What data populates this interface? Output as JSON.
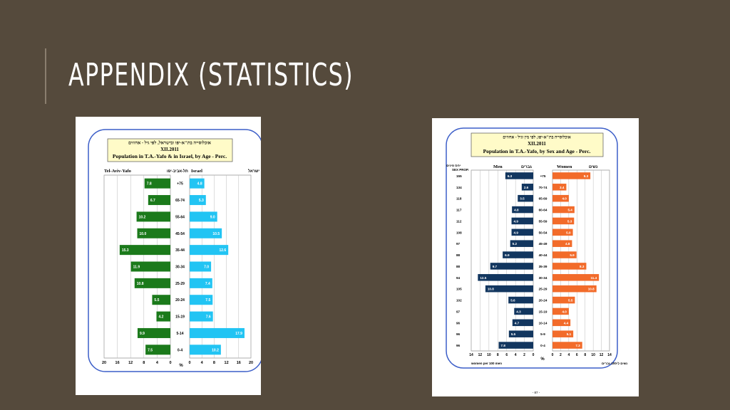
{
  "slide": {
    "title": "APPENDIX (STATISTICS)"
  },
  "colors": {
    "background": "#554a3c",
    "tel_aviv": "#1b7a1b",
    "israel": "#22c4f3",
    "men": "#12365f",
    "women": "#f26b2a",
    "frame": "#3c5ec8",
    "header_fill": "#fffbc8"
  },
  "chart_data": [
    {
      "type": "bar",
      "title_he": "אוכלוסייה בת\"א-יפו ובישראל, לפי גיל - אחוזים",
      "title_date": "XII.2011",
      "title": "Population in T.A.-Yafo & in Israel, by Age - Perc.",
      "left_label": "Tel-Aviv-Yafo",
      "left_label_he": "תל-אביב-יפו",
      "right_label": "Israel",
      "right_label_he": "ישראל",
      "unit": "%",
      "categories": [
        "+75",
        "65-74",
        "55-64",
        "45-54",
        "35-44",
        "30-34",
        "25-29",
        "20-24",
        "15-19",
        "5-14",
        "0-4"
      ],
      "series": [
        {
          "name": "Tel-Aviv-Yafo",
          "values": [
            7.8,
            6.7,
            10.2,
            10.0,
            15.3,
            11.9,
            10.8,
            5.5,
            4.2,
            9.9,
            7.5
          ]
        },
        {
          "name": "Israel",
          "values": [
            4.8,
            5.3,
            9.0,
            10.5,
            12.6,
            7.0,
            7.4,
            7.5,
            7.6,
            17.9,
            10.2
          ]
        }
      ],
      "xlim": [
        0,
        20
      ],
      "ticks_left": [
        "20",
        "16",
        "12",
        "8",
        "4",
        "0"
      ],
      "ticks_right": [
        "0",
        "4",
        "8",
        "12",
        "16",
        "20"
      ],
      "grid": true
    },
    {
      "type": "bar",
      "title_he": "אוכלוסייה בת\"א-יפו, לפי מין וגיל - אחוזים",
      "title_date": "XII.2011",
      "title": "Population in T.A.-Yafo, by Sex and Age - Perc.",
      "men_label": "Men",
      "men_label_he": "גברים",
      "women_label": "Women",
      "women_label_he": "נשים",
      "sexprop_label_he": "יחס מינים",
      "sexprop_label": "SEX PROP.",
      "unit": "%",
      "categories": [
        "+75",
        "70-74",
        "65-69",
        "60-64",
        "55-59",
        "50-54",
        "45-49",
        "40-44",
        "35-39",
        "30-34",
        "25-29",
        "20-24",
        "15-19",
        "10-14",
        "5-9",
        "0-4"
      ],
      "sex_prop": [
        "155",
        "134",
        "118",
        "117",
        "112",
        "108",
        "97",
        "88",
        "88",
        "94",
        "105",
        "102",
        "97",
        "96",
        "96",
        "96"
      ],
      "series": [
        {
          "name": "Men",
          "values": [
            6.3,
            2.6,
            3.5,
            4.8,
            4.9,
            4.9,
            5.2,
            6.9,
            9.7,
            12.5,
            10.8,
            5.6,
            4.3,
            4.7,
            5.5,
            7.8
          ]
        },
        {
          "name": "Women",
          "values": [
            9.3,
            3.4,
            4.0,
            5.4,
            5.3,
            5.0,
            4.8,
            5.9,
            8.3,
            11.4,
            10.8,
            5.5,
            4.0,
            4.4,
            5.1,
            7.3
          ]
        }
      ],
      "xlim": [
        0,
        14
      ],
      "ticks_left": [
        "14",
        "12",
        "10",
        "8",
        "6",
        "4",
        "2",
        "0"
      ],
      "ticks_right": [
        "0",
        "2",
        "4",
        "6",
        "8",
        "10",
        "12",
        "14"
      ],
      "footer_left": "women per 100 men",
      "footer_right": "נשים ל-100 גברים",
      "page_number": "- 87 -",
      "grid": true
    }
  ]
}
